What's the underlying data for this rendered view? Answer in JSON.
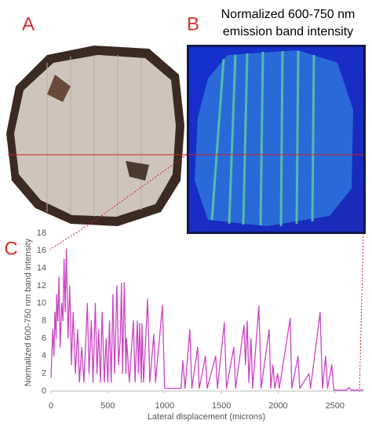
{
  "figure": {
    "panel_labels": [
      "A",
      "B",
      "C"
    ],
    "map_title": [
      "Normalized 600-750 nm",
      "emission band intensity"
    ]
  },
  "chart_data": {
    "type": "line",
    "x_label": "Lateral displacement (microns)",
    "y_label": "Normalized 600-750 nm band intensity",
    "x": [
      0,
      15,
      25,
      35,
      45,
      50,
      60,
      70,
      80,
      95,
      105,
      115,
      125,
      135,
      150,
      165,
      180,
      195,
      215,
      235,
      250,
      270,
      290,
      320,
      335,
      355,
      370,
      390,
      405,
      420,
      435,
      450,
      470,
      485,
      500,
      515,
      530,
      545,
      560,
      580,
      595,
      610,
      620,
      630,
      645,
      660,
      665,
      690,
      725,
      740,
      760,
      770,
      780,
      795,
      800,
      815,
      850,
      870,
      905,
      920,
      981,
      1000,
      1145,
      1160,
      1180,
      1222,
      1240,
      1291,
      1305,
      1360,
      1375,
      1450,
      1465,
      1526,
      1545,
      1609,
      1625,
      1699,
      1712,
      1727,
      1742,
      1761,
      1775,
      1830,
      1850,
      1920,
      1935,
      1954,
      1970,
      1996,
      2010,
      2106,
      2120,
      2175,
      2190,
      2272,
      2285,
      2369,
      2390,
      2417,
      2435,
      2472,
      2490,
      2600,
      2625,
      2640,
      2750
    ],
    "series": [
      {
        "name": "600-750 nm band intensity",
        "color": "#cc44c4",
        "values": [
          1.5,
          7,
          4,
          9,
          6,
          11,
          8,
          13,
          5,
          10,
          8,
          15,
          9,
          16.2,
          6,
          12,
          3,
          9,
          2,
          7,
          1,
          5,
          1,
          10,
          2,
          8,
          1,
          10,
          2,
          7,
          1,
          9,
          1,
          6,
          1,
          8,
          1,
          11,
          2,
          12,
          3,
          6,
          12.3,
          2,
          12.4,
          2,
          6,
          1,
          8,
          1,
          8,
          2,
          7.7,
          1,
          7.7,
          1,
          10.5,
          1,
          6.5,
          1,
          9.8,
          0.3,
          0.3,
          3.5,
          0.3,
          7,
          0.3,
          5,
          0.3,
          4,
          0.3,
          4,
          0.3,
          7.8,
          0.3,
          5,
          0.3,
          7.5,
          3,
          8,
          1,
          6,
          0.3,
          9.7,
          0.3,
          7,
          0.3,
          3,
          0.3,
          2,
          0.3,
          8.3,
          0.3,
          4,
          0.3,
          2,
          0.3,
          9,
          0.3,
          4,
          0.3,
          3,
          0.1,
          0.1,
          0.4,
          0.1,
          0.1
        ]
      }
    ],
    "xlim": [
      0,
      2750
    ],
    "ylim": [
      0,
      18
    ],
    "xticks": [
      0,
      500,
      1000,
      1500,
      2000,
      2500
    ],
    "yticks": [
      0,
      2,
      4,
      6,
      8,
      10,
      12,
      14,
      16,
      18
    ],
    "grid": false
  }
}
